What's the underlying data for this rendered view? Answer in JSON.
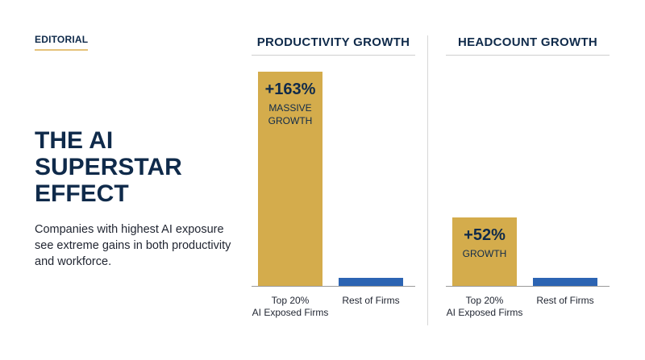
{
  "tag": "EDITORIAL",
  "title": "THE AI SUPERSTAR EFFECT",
  "subtitle": "Companies with highest AI exposure see extreme gains in both productivity and workforce.",
  "colors": {
    "navy": "#0f2a4a",
    "gold": "#d4ac4c",
    "blue": "#2c64b3"
  },
  "chart_data": [
    {
      "type": "bar",
      "title": "PRODUCTIVITY GROWTH",
      "categories": [
        "Top 20%\nAI Exposed Firms",
        "Rest of Firms"
      ],
      "values": [
        163,
        5
      ],
      "data_labels": [
        {
          "value": "+163%",
          "note": "MASSIVE\nGROWTH"
        },
        null
      ],
      "colors": [
        "#d4ac4c",
        "#2c64b3"
      ],
      "ylim": [
        0,
        163
      ]
    },
    {
      "type": "bar",
      "title": "HEADCOUNT GROWTH",
      "categories": [
        "Top 20%\nAI Exposed Firms",
        "Rest of Firms"
      ],
      "values": [
        52,
        5
      ],
      "data_labels": [
        {
          "value": "+52%",
          "note": "GROWTH"
        },
        null
      ],
      "colors": [
        "#d4ac4c",
        "#2c64b3"
      ],
      "ylim": [
        0,
        163
      ]
    }
  ]
}
